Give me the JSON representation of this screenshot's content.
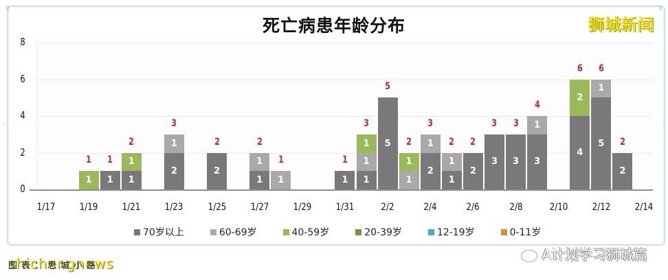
{
  "watermark_brand": "狮城新闻",
  "footer": {
    "source_label": "图表：思城小路",
    "overlay_text": "shichengnews",
    "wechat_account": "A计划学习狮城篇"
  },
  "colors": {
    "70_plus": "#7b787c",
    "60_69": "#aaa8ab",
    "40_59": "#9aba59",
    "20_39": "#76923c",
    "12_19": "#4bacc6",
    "0_11": "#e08a3c",
    "total_label": "#c0282d"
  },
  "chart_data": {
    "type": "bar",
    "stacked": true,
    "title": "死亡病患年龄分布",
    "xlabel": "",
    "ylabel": "",
    "ylim": [
      0,
      8
    ],
    "yticks": [
      "0",
      "2",
      "4",
      "6",
      "8"
    ],
    "grid": true,
    "legend_position": "bottom",
    "xtick_labels": [
      "1/17",
      "1/19",
      "1/21",
      "1/23",
      "1/25",
      "1/27",
      "1/29",
      "1/31",
      "2/2",
      "2/4",
      "2/6",
      "2/8",
      "2/10",
      "2/12",
      "2/14"
    ],
    "categories": [
      "1/17",
      "1/18",
      "1/19",
      "1/20",
      "1/21",
      "1/22",
      "1/23",
      "1/24",
      "1/25",
      "1/26",
      "1/27",
      "1/28",
      "1/29",
      "1/30",
      "1/31",
      "2/1",
      "2/2",
      "2/3",
      "2/4",
      "2/5",
      "2/6",
      "2/7",
      "2/8",
      "2/9",
      "2/10",
      "2/11",
      "2/12",
      "2/13",
      "2/14"
    ],
    "series": [
      {
        "name": "70岁以上",
        "values": [
          0,
          0,
          0,
          1,
          1,
          0,
          2,
          0,
          2,
          0,
          1,
          0,
          0,
          0,
          1,
          1,
          5,
          0,
          2,
          1,
          2,
          3,
          3,
          3,
          0,
          4,
          5,
          2,
          0
        ]
      },
      {
        "name": "60-69岁",
        "values": [
          0,
          0,
          0,
          0,
          0,
          0,
          1,
          0,
          0,
          0,
          1,
          1,
          0,
          0,
          0,
          1,
          0,
          1,
          1,
          1,
          0,
          0,
          0,
          1,
          0,
          0,
          1,
          0,
          0
        ]
      },
      {
        "name": "40-59岁",
        "values": [
          0,
          0,
          1,
          0,
          1,
          0,
          0,
          0,
          0,
          0,
          0,
          0,
          0,
          0,
          0,
          1,
          0,
          1,
          0,
          0,
          0,
          0,
          0,
          0,
          0,
          2,
          0,
          0,
          0
        ]
      },
      {
        "name": "20-39岁",
        "values": [
          0,
          0,
          0,
          0,
          0,
          0,
          0,
          0,
          0,
          0,
          0,
          0,
          0,
          0,
          0,
          0,
          0,
          0,
          0,
          0,
          0,
          0,
          0,
          0,
          0,
          0,
          0,
          0,
          0
        ]
      },
      {
        "name": "12-19岁",
        "values": [
          0,
          0,
          0,
          0,
          0,
          0,
          0,
          0,
          0,
          0,
          0,
          0,
          0,
          0,
          0,
          0,
          0,
          0,
          0,
          0,
          0,
          0,
          0,
          0,
          0,
          0,
          0,
          0,
          0
        ]
      },
      {
        "name": "0-11岁",
        "values": [
          0,
          0,
          0,
          0,
          0,
          0,
          0,
          0,
          0,
          0,
          0,
          0,
          0,
          0,
          0,
          0,
          0,
          0,
          0,
          0,
          0,
          0,
          0,
          0,
          0,
          0,
          0,
          0,
          0
        ]
      }
    ],
    "totals": [
      0,
      0,
      1,
      1,
      2,
      0,
      3,
      0,
      2,
      0,
      2,
      1,
      0,
      0,
      1,
      3,
      5,
      2,
      3,
      2,
      2,
      3,
      3,
      4,
      0,
      6,
      6,
      2,
      0
    ]
  }
}
